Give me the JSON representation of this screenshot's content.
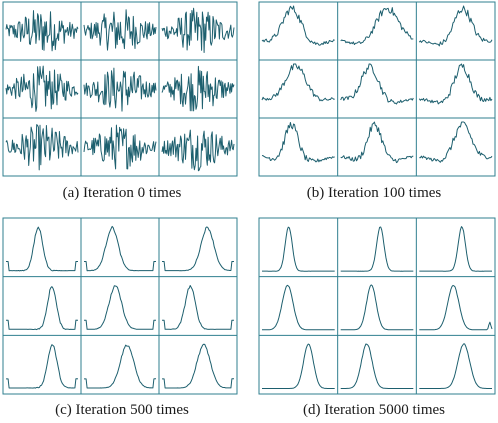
{
  "figure": {
    "line_color": "#1d5f6e",
    "frame_color": "#2f7f8f",
    "background": "#ffffff"
  },
  "chart_data": [
    {
      "type": "line",
      "caption": "(a) Iteration 0 times",
      "rows": 3,
      "cols": 3,
      "waveform": "noisy-random"
    },
    {
      "type": "line",
      "caption": "(b) Iteration 100 times",
      "rows": 3,
      "cols": 3,
      "waveform": "noisy-peak"
    },
    {
      "type": "line",
      "caption": "(c) Iteration 500 times",
      "rows": 3,
      "cols": 3,
      "waveform": "peak"
    },
    {
      "type": "line",
      "caption": "(d) Iteration 5000 times",
      "rows": 3,
      "cols": 3,
      "waveform": "clean-peak"
    }
  ]
}
